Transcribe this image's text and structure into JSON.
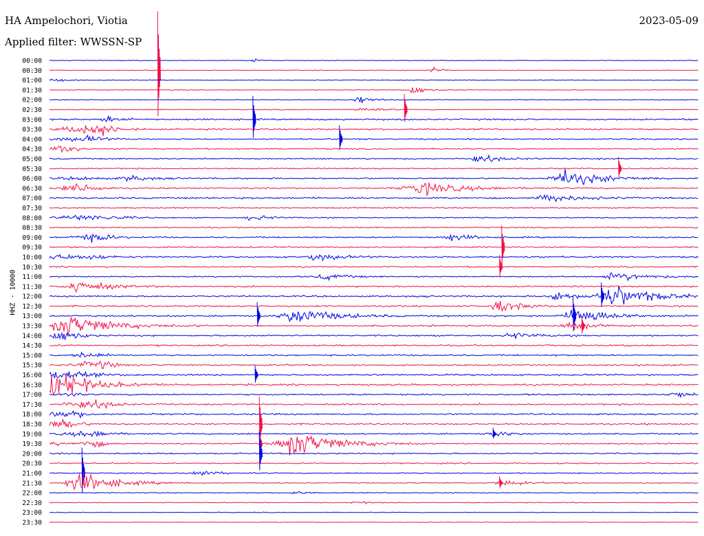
{
  "header": {
    "station": "HA Ampelochori, Viotia",
    "filter": "Applied filter: WWSSN-SP",
    "date": "2023-05-09"
  },
  "colors": {
    "trace_a": "#0000e6",
    "trace_b": "#ef1049"
  },
  "chart_data": {
    "type": "line",
    "title": "HA Ampelochori, Viotia",
    "subtitle": "Applied filter: WWSSN-SP",
    "date": "2023-05-09",
    "ylabel": "HHZ - 10000",
    "xlabel": "",
    "grid": false,
    "row_interval_minutes": 30,
    "series_colors": [
      "#0000e6",
      "#ef1049"
    ],
    "rows": [
      {
        "label": "00:00",
        "activity": 0.05
      },
      {
        "label": "00:30",
        "activity": 0.06
      },
      {
        "label": "01:00",
        "activity": 0.05
      },
      {
        "label": "01:30",
        "activity": 0.06
      },
      {
        "label": "02:00",
        "activity": 0.12
      },
      {
        "label": "02:30",
        "activity": 0.14
      },
      {
        "label": "03:00",
        "activity": 0.45
      },
      {
        "label": "03:30",
        "activity": 0.45
      },
      {
        "label": "04:00",
        "activity": 0.35
      },
      {
        "label": "04:30",
        "activity": 0.32
      },
      {
        "label": "05:00",
        "activity": 0.35
      },
      {
        "label": "05:30",
        "activity": 0.32
      },
      {
        "label": "06:00",
        "activity": 0.4
      },
      {
        "label": "06:30",
        "activity": 0.4
      },
      {
        "label": "07:00",
        "activity": 0.5
      },
      {
        "label": "07:30",
        "activity": 0.35
      },
      {
        "label": "08:00",
        "activity": 0.3
      },
      {
        "label": "08:30",
        "activity": 0.32
      },
      {
        "label": "09:00",
        "activity": 0.4
      },
      {
        "label": "09:30",
        "activity": 0.42
      },
      {
        "label": "10:00",
        "activity": 0.45
      },
      {
        "label": "10:30",
        "activity": 0.35
      },
      {
        "label": "11:00",
        "activity": 0.35
      },
      {
        "label": "11:30",
        "activity": 0.45
      },
      {
        "label": "12:00",
        "activity": 0.5
      },
      {
        "label": "12:30",
        "activity": 0.45
      },
      {
        "label": "13:00",
        "activity": 0.5
      },
      {
        "label": "13:30",
        "activity": 0.5
      },
      {
        "label": "14:00",
        "activity": 0.45
      },
      {
        "label": "14:30",
        "activity": 0.45
      },
      {
        "label": "15:00",
        "activity": 0.4
      },
      {
        "label": "15:30",
        "activity": 0.45
      },
      {
        "label": "16:00",
        "activity": 0.5
      },
      {
        "label": "16:30",
        "activity": 0.5
      },
      {
        "label": "17:00",
        "activity": 0.45
      },
      {
        "label": "17:30",
        "activity": 0.5
      },
      {
        "label": "18:00",
        "activity": 0.45
      },
      {
        "label": "18:30",
        "activity": 0.45
      },
      {
        "label": "19:00",
        "activity": 0.4
      },
      {
        "label": "19:30",
        "activity": 0.35
      },
      {
        "label": "20:00",
        "activity": 0.35
      },
      {
        "label": "20:30",
        "activity": 0.3
      },
      {
        "label": "21:00",
        "activity": 0.25
      },
      {
        "label": "21:30",
        "activity": 0.2
      },
      {
        "label": "22:00",
        "activity": 0.15
      },
      {
        "label": "22:30",
        "activity": 0.12
      },
      {
        "label": "23:00",
        "activity": 0.08
      },
      {
        "label": "23:30",
        "activity": 0.04
      }
    ],
    "events": [
      {
        "row": 0,
        "minute": 9.4,
        "amp": 1.6,
        "len": 0.5
      },
      {
        "row": 1,
        "minute": 17.8,
        "amp": 3.0,
        "len": 0.6
      },
      {
        "row": 3,
        "minute": 16.8,
        "amp": 5.0,
        "len": 0.8
      },
      {
        "row": 4,
        "minute": 14.3,
        "amp": 4.0,
        "len": 1.0
      },
      {
        "row": 5,
        "minute": 14.5,
        "amp": 3.0,
        "len": 1.0
      },
      {
        "row": 6,
        "minute": 2.7,
        "amp": 2.5,
        "len": 1.2
      },
      {
        "row": 7,
        "minute": 2.5,
        "amp": 2.5,
        "len": 1.2
      },
      {
        "row": 8,
        "minute": 1.9,
        "amp": 2.0,
        "len": 1.4
      },
      {
        "row": 10,
        "minute": 19.9,
        "amp": 4.0,
        "len": 1.6
      },
      {
        "row": 12,
        "minute": 24.0,
        "amp": 8.0,
        "len": 2.6
      },
      {
        "row": 12,
        "minute": 3.8,
        "amp": 3.0,
        "len": 1.4
      },
      {
        "row": 13,
        "minute": 17.3,
        "amp": 6.0,
        "len": 3.0
      },
      {
        "row": 14,
        "minute": 23.2,
        "amp": 4.0,
        "len": 2.0
      },
      {
        "row": 16,
        "minute": 9.4,
        "amp": 3.0,
        "len": 1.2
      },
      {
        "row": 18,
        "minute": 18.6,
        "amp": 3.5,
        "len": 1.5
      },
      {
        "row": 20,
        "minute": 12.4,
        "amp": 3.5,
        "len": 1.8
      },
      {
        "row": 22,
        "minute": 26.3,
        "amp": 4.0,
        "len": 2.2
      },
      {
        "row": 22,
        "minute": 12.8,
        "amp": 3.0,
        "len": 1.6
      },
      {
        "row": 23,
        "minute": 1.4,
        "amp": 6.0,
        "len": 2.0
      },
      {
        "row": 24,
        "minute": 26.2,
        "amp": 10.0,
        "len": 3.0
      },
      {
        "row": 24,
        "minute": 23.4,
        "amp": 4.0,
        "len": 1.4
      },
      {
        "row": 25,
        "minute": 20.9,
        "amp": 5.0,
        "len": 1.8
      },
      {
        "row": 26,
        "minute": 24.5,
        "amp": 8.0,
        "len": 2.2
      },
      {
        "row": 26,
        "minute": 11.5,
        "amp": 8.0,
        "len": 2.5
      },
      {
        "row": 27,
        "minute": 1.0,
        "amp": 10.0,
        "len": 3.0
      },
      {
        "row": 27,
        "minute": 24.2,
        "amp": 4.0,
        "len": 1.5
      },
      {
        "row": 28,
        "minute": 21.5,
        "amp": 3.0,
        "len": 1.5
      },
      {
        "row": 30,
        "minute": 1.5,
        "amp": 3.0,
        "len": 1.5
      },
      {
        "row": 32,
        "minute": 0.5,
        "amp": 5.0,
        "len": 2.0
      },
      {
        "row": 33,
        "minute": 0.5,
        "amp": 8.0,
        "len": 3.0
      },
      {
        "row": 34,
        "minute": 29.0,
        "amp": 3.0,
        "len": 1.2
      },
      {
        "row": 38,
        "minute": 20.5,
        "amp": 3.0,
        "len": 1.2
      },
      {
        "row": 39,
        "minute": 11.5,
        "amp": 12.0,
        "len": 3.0
      },
      {
        "row": 42,
        "minute": 6.8,
        "amp": 3.0,
        "len": 1.4
      },
      {
        "row": 43,
        "minute": 1.5,
        "amp": 10.0,
        "len": 2.5
      },
      {
        "row": 43,
        "minute": 21.0,
        "amp": 3.0,
        "len": 1.5
      },
      {
        "row": 44,
        "minute": 11.4,
        "amp": 2.0,
        "len": 0.8
      },
      {
        "row": 45,
        "minute": 14.2,
        "amp": 1.6,
        "len": 0.8
      }
    ],
    "spikes": [
      {
        "row": 1,
        "minute": 5.0,
        "amp": 60
      },
      {
        "row": 6,
        "minute": 9.4,
        "amp": 24
      },
      {
        "row": 5,
        "minute": 16.4,
        "amp": 16
      },
      {
        "row": 8,
        "minute": 13.4,
        "amp": 14
      },
      {
        "row": 11,
        "minute": 26.3,
        "amp": 12
      },
      {
        "row": 19,
        "minute": 20.9,
        "amp": 22
      },
      {
        "row": 21,
        "minute": 20.8,
        "amp": 12
      },
      {
        "row": 24,
        "minute": 25.5,
        "amp": 14
      },
      {
        "row": 26,
        "minute": 9.6,
        "amp": 14
      },
      {
        "row": 26,
        "minute": 24.2,
        "amp": 20
      },
      {
        "row": 27,
        "minute": 24.6,
        "amp": 10
      },
      {
        "row": 38,
        "minute": 20.5,
        "amp": 6
      },
      {
        "row": 32,
        "minute": 9.5,
        "amp": 10
      },
      {
        "row": 37,
        "minute": 9.7,
        "amp": 28
      },
      {
        "row": 39,
        "minute": 9.7,
        "amp": 14
      },
      {
        "row": 42,
        "minute": 1.5,
        "amp": 26
      },
      {
        "row": 43,
        "minute": 20.8,
        "amp": 7
      },
      {
        "row": 40,
        "minute": 9.7,
        "amp": 22
      }
    ]
  }
}
